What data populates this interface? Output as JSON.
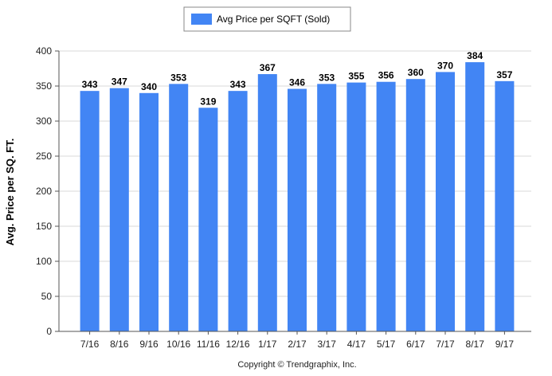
{
  "chart_data": {
    "type": "bar",
    "categories": [
      "7/16",
      "8/16",
      "9/16",
      "10/16",
      "11/16",
      "12/16",
      "1/17",
      "2/17",
      "3/17",
      "4/17",
      "5/17",
      "6/17",
      "7/17",
      "8/17",
      "9/17"
    ],
    "series": [
      {
        "name": "Avg Price per SQFT (Sold)",
        "values": [
          343,
          347,
          340,
          353,
          319,
          343,
          367,
          346,
          353,
          355,
          356,
          360,
          370,
          384,
          357
        ],
        "color": "#4285f4"
      }
    ],
    "ylabel": "Avg. Price per SQ. FT.",
    "ylim": [
      0,
      400
    ],
    "yticks": [
      0,
      50,
      100,
      150,
      200,
      250,
      300,
      350,
      400
    ],
    "grid": true,
    "legend_position": "top-center",
    "data_labels": true
  },
  "footer": {
    "copyright": "Copyright © Trendgraphix, Inc."
  }
}
